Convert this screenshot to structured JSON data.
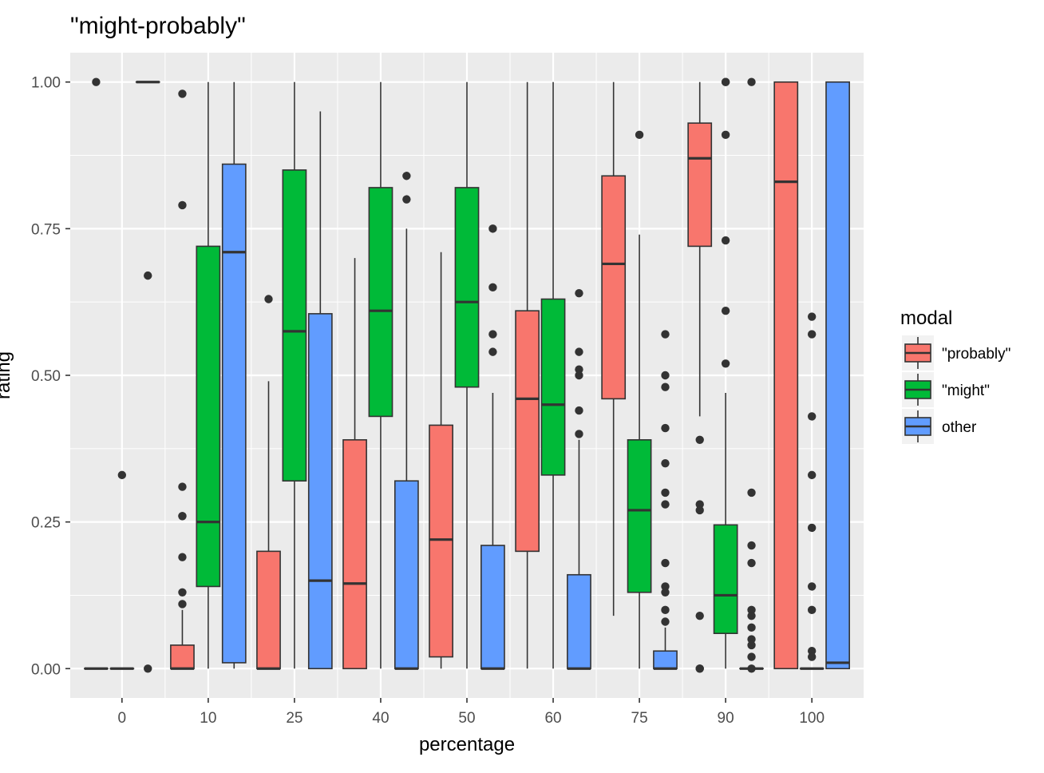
{
  "chart_data": {
    "type": "boxplot",
    "title": "\"might-probably\"",
    "xlabel": "percentage",
    "ylabel": "rating",
    "categories": [
      "0",
      "10",
      "25",
      "40",
      "50",
      "60",
      "75",
      "90",
      "100"
    ],
    "ylim": [
      -0.05,
      1.05
    ],
    "yticks": [
      0.0,
      0.25,
      0.5,
      0.75,
      1.0
    ],
    "ytick_labels": [
      "0.00",
      "0.25",
      "0.50",
      "0.75",
      "1.00"
    ],
    "panel_background": "#EBEBEB",
    "grid": true,
    "legend": {
      "title": "modal",
      "position": "right",
      "entries": [
        {
          "label": "\"probably\"",
          "color": "#F8766D"
        },
        {
          "label": "\"might\"",
          "color": "#00BA38"
        },
        {
          "label": "other",
          "color": "#619CFF"
        }
      ]
    },
    "series": [
      {
        "name": "\"probably\"",
        "color": "#F8766D",
        "boxes": [
          {
            "x": "0",
            "q1": 0.0,
            "median": 0.0,
            "q3": 0.0,
            "whisker_low": 0.0,
            "whisker_high": 0.0,
            "outliers": [
              1.0
            ]
          },
          {
            "x": "10",
            "q1": 0.0,
            "median": 0.0,
            "q3": 0.04,
            "whisker_low": 0.0,
            "whisker_high": 0.1,
            "outliers": [
              0.98,
              0.79,
              0.31,
              0.26,
              0.26,
              0.19,
              0.13,
              0.11
            ]
          },
          {
            "x": "25",
            "q1": 0.0,
            "median": 0.0,
            "q3": 0.2,
            "whisker_low": 0.0,
            "whisker_high": 0.49,
            "outliers": [
              0.63
            ]
          },
          {
            "x": "40",
            "q1": 0.0,
            "median": 0.145,
            "q3": 0.39,
            "whisker_low": 0.0,
            "whisker_high": 0.7,
            "outliers": []
          },
          {
            "x": "50",
            "q1": 0.02,
            "median": 0.22,
            "q3": 0.415,
            "whisker_low": 0.0,
            "whisker_high": 0.71,
            "outliers": []
          },
          {
            "x": "60",
            "q1": 0.2,
            "median": 0.46,
            "q3": 0.61,
            "whisker_low": 0.0,
            "whisker_high": 1.0,
            "outliers": []
          },
          {
            "x": "75",
            "q1": 0.46,
            "median": 0.69,
            "q3": 0.84,
            "whisker_low": 0.09,
            "whisker_high": 1.0,
            "outliers": []
          },
          {
            "x": "90",
            "q1": 0.72,
            "median": 0.87,
            "q3": 0.93,
            "whisker_low": 0.43,
            "whisker_high": 1.0,
            "outliers": [
              0.39,
              0.28,
              0.27,
              0.09,
              0.0,
              0.0
            ]
          },
          {
            "x": "100",
            "q1": 0.0,
            "median": 0.83,
            "q3": 1.0,
            "whisker_low": 0.0,
            "whisker_high": 1.0,
            "outliers": []
          }
        ]
      },
      {
        "name": "\"might\"",
        "color": "#00BA38",
        "boxes": [
          {
            "x": "0",
            "q1": 0.0,
            "median": 0.0,
            "q3": 0.0,
            "whisker_low": 0.0,
            "whisker_high": 0.0,
            "outliers": [
              0.33
            ]
          },
          {
            "x": "10",
            "q1": 0.14,
            "median": 0.25,
            "q3": 0.72,
            "whisker_low": 0.0,
            "whisker_high": 1.0,
            "outliers": []
          },
          {
            "x": "25",
            "q1": 0.32,
            "median": 0.575,
            "q3": 0.85,
            "whisker_low": 0.0,
            "whisker_high": 1.0,
            "outliers": []
          },
          {
            "x": "40",
            "q1": 0.43,
            "median": 0.61,
            "q3": 0.82,
            "whisker_low": 0.0,
            "whisker_high": 1.0,
            "outliers": []
          },
          {
            "x": "50",
            "q1": 0.48,
            "median": 0.625,
            "q3": 0.82,
            "whisker_low": 0.0,
            "whisker_high": 1.0,
            "outliers": []
          },
          {
            "x": "60",
            "q1": 0.33,
            "median": 0.45,
            "q3": 0.63,
            "whisker_low": 0.0,
            "whisker_high": 1.0,
            "outliers": []
          },
          {
            "x": "75",
            "q1": 0.13,
            "median": 0.27,
            "q3": 0.39,
            "whisker_low": 0.0,
            "whisker_high": 0.74,
            "outliers": [
              0.91
            ]
          },
          {
            "x": "90",
            "q1": 0.06,
            "median": 0.125,
            "q3": 0.245,
            "whisker_low": 0.0,
            "whisker_high": 0.47,
            "outliers": [
              1.0,
              1.0,
              0.91,
              0.73,
              0.61,
              0.52
            ]
          },
          {
            "x": "100",
            "q1": 0.0,
            "median": 0.0,
            "q3": 0.0,
            "whisker_low": 0.0,
            "whisker_high": 0.0,
            "outliers": [
              0.6,
              0.57,
              0.43,
              0.33,
              0.24,
              0.14,
              0.1,
              0.03,
              0.02
            ]
          }
        ]
      },
      {
        "name": "other",
        "color": "#619CFF",
        "boxes": [
          {
            "x": "0",
            "q1": 1.0,
            "median": 1.0,
            "q3": 1.0,
            "whisker_low": 1.0,
            "whisker_high": 1.0,
            "outliers": [
              0.67,
              0.0
            ]
          },
          {
            "x": "10",
            "q1": 0.01,
            "median": 0.71,
            "q3": 0.86,
            "whisker_low": 0.0,
            "whisker_high": 1.0,
            "outliers": []
          },
          {
            "x": "25",
            "q1": 0.0,
            "median": 0.15,
            "q3": 0.605,
            "whisker_low": 0.0,
            "whisker_high": 0.95,
            "outliers": []
          },
          {
            "x": "40",
            "q1": 0.0,
            "median": 0.0,
            "q3": 0.32,
            "whisker_low": 0.0,
            "whisker_high": 0.75,
            "outliers": [
              0.84,
              0.8
            ]
          },
          {
            "x": "50",
            "q1": 0.0,
            "median": 0.0,
            "q3": 0.21,
            "whisker_low": 0.0,
            "whisker_high": 0.47,
            "outliers": [
              0.75,
              0.65,
              0.57,
              0.54
            ]
          },
          {
            "x": "60",
            "q1": 0.0,
            "median": 0.0,
            "q3": 0.16,
            "whisker_low": 0.0,
            "whisker_high": 0.39,
            "outliers": [
              0.64,
              0.54,
              0.51,
              0.5,
              0.44,
              0.4
            ]
          },
          {
            "x": "75",
            "q1": 0.0,
            "median": 0.0,
            "q3": 0.03,
            "whisker_low": 0.0,
            "whisker_high": 0.07,
            "outliers": [
              0.57,
              0.5,
              0.48,
              0.41,
              0.35,
              0.3,
              0.28,
              0.18,
              0.14,
              0.13,
              0.1,
              0.08
            ]
          },
          {
            "x": "90",
            "q1": 0.0,
            "median": 0.0,
            "q3": 0.0,
            "whisker_low": 0.0,
            "whisker_high": 0.0,
            "outliers": [
              1.0,
              0.3,
              0.21,
              0.18,
              0.1,
              0.09,
              0.07,
              0.05,
              0.04,
              0.02,
              0.0
            ]
          },
          {
            "x": "100",
            "q1": 0.0,
            "median": 0.01,
            "q3": 1.0,
            "whisker_low": 0.0,
            "whisker_high": 1.0,
            "outliers": []
          }
        ]
      }
    ]
  }
}
